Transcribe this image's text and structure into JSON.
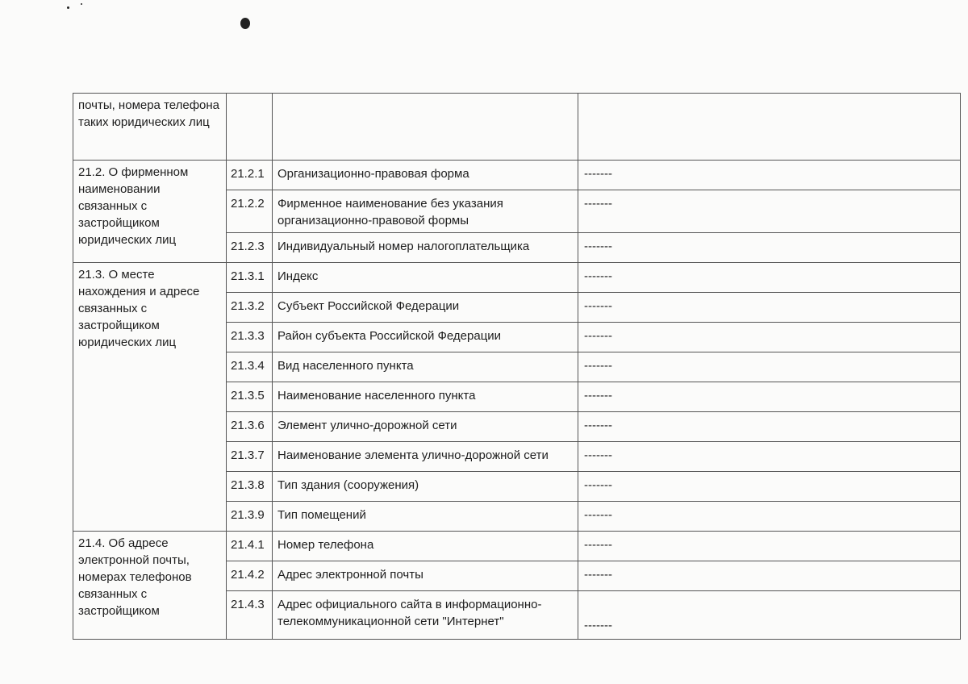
{
  "document": {
    "continued_row": {
      "group": "почты, номера телефона таких юридических лиц"
    },
    "groups": [
      {
        "title": "21.2. О фирменном наименовании связанных с застройщиком юридических лиц",
        "items": [
          {
            "code": "21.2.1",
            "label": "Организационно-правовая форма",
            "value": "-------"
          },
          {
            "code": "21.2.2",
            "label": "Фирменное наименование без указания организационно-правовой формы",
            "value": "-------"
          },
          {
            "code": "21.2.3",
            "label": "Индивидуальный номер налогоплательщика",
            "value": "-------"
          }
        ]
      },
      {
        "title": "21.3. О месте нахождения и адресе связанных с застройщиком юридических лиц",
        "items": [
          {
            "code": "21.3.1",
            "label": "Индекс",
            "value": "-------"
          },
          {
            "code": "21.3.2",
            "label": "Субъект Российской Федерации",
            "value": "-------"
          },
          {
            "code": "21.3.3",
            "label": "Район субъекта Российской Федерации",
            "value": "-------"
          },
          {
            "code": "21.3.4",
            "label": "Вид населенного пункта",
            "value": "-------"
          },
          {
            "code": "21.3.5",
            "label": "Наименование населенного пункта",
            "value": "-------"
          },
          {
            "code": "21.3.6",
            "label": "Элемент улично-дорожной сети",
            "value": "-------"
          },
          {
            "code": "21.3.7",
            "label": "Наименование элемента улично-дорожной сети",
            "value": "-------"
          },
          {
            "code": "21.3.8",
            "label": "Тип здания (сооружения)",
            "value": "-------"
          },
          {
            "code": "21.3.9",
            "label": "Тип помещений",
            "value": "-------"
          }
        ]
      },
      {
        "title": "21.4. Об адресе электронной почты, номерах телефонов связанных с застройщиком",
        "items": [
          {
            "code": "21.4.1",
            "label": "Номер телефона",
            "value": "-------"
          },
          {
            "code": "21.4.2",
            "label": "Адрес электронной почты",
            "value": "-------"
          },
          {
            "code": "21.4.3",
            "label": "Адрес официального сайта в информационно-телекоммуникационной сети \"Интернет\"",
            "value": "-------"
          }
        ]
      }
    ]
  }
}
